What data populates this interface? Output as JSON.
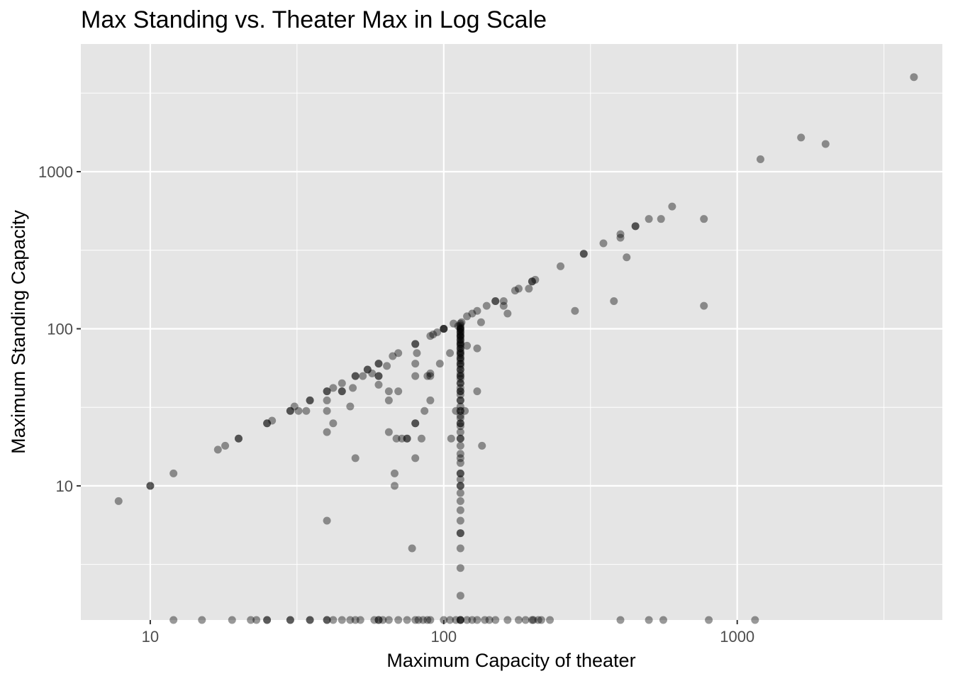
{
  "chart_data": {
    "type": "scatter",
    "title": "Max Standing vs. Theater Max in Log Scale",
    "xlabel": "Maximum Capacity of theater",
    "ylabel": "Maximum Standing Capacity",
    "xscale": "log10",
    "yscale": "log10",
    "xlim": [
      5.8,
      5000
    ],
    "ylim": [
      1.4,
      6500
    ],
    "x_ticks": [
      10,
      100,
      1000
    ],
    "x_tick_labels": [
      "10",
      "100",
      "1000"
    ],
    "y_ticks": [
      10,
      100,
      1000
    ],
    "y_tick_labels": [
      "10",
      "100",
      "1000"
    ],
    "grid": true,
    "legend": "none",
    "point_color": "#000000",
    "point_opacity": 0.4,
    "panel_color": "#e5e5e5",
    "grid_color": "#ffffff",
    "points": [
      [
        7.8,
        8
      ],
      [
        10,
        10
      ],
      [
        10,
        10
      ],
      [
        12,
        12
      ],
      [
        17,
        17
      ],
      [
        18,
        18
      ],
      [
        20,
        20
      ],
      [
        20,
        20
      ],
      [
        25,
        25
      ],
      [
        25,
        25
      ],
      [
        26,
        26
      ],
      [
        30,
        30
      ],
      [
        30,
        30
      ],
      [
        31,
        32
      ],
      [
        32,
        30
      ],
      [
        34,
        30
      ],
      [
        35,
        35
      ],
      [
        35,
        35
      ],
      [
        40,
        40
      ],
      [
        40,
        40
      ],
      [
        40,
        35
      ],
      [
        40,
        30
      ],
      [
        40,
        22
      ],
      [
        40,
        6
      ],
      [
        42,
        42
      ],
      [
        42,
        25
      ],
      [
        45,
        45
      ],
      [
        45,
        40
      ],
      [
        45,
        40
      ],
      [
        48,
        32
      ],
      [
        49,
        42
      ],
      [
        50,
        50
      ],
      [
        50,
        50
      ],
      [
        50,
        15
      ],
      [
        53,
        50
      ],
      [
        55,
        55
      ],
      [
        55,
        55
      ],
      [
        57,
        52
      ],
      [
        60,
        60
      ],
      [
        60,
        60
      ],
      [
        60,
        50
      ],
      [
        60,
        50
      ],
      [
        60,
        44
      ],
      [
        64,
        58
      ],
      [
        65,
        40
      ],
      [
        65,
        35
      ],
      [
        65,
        22
      ],
      [
        67,
        67
      ],
      [
        68,
        12
      ],
      [
        68,
        10
      ],
      [
        69,
        20
      ],
      [
        70,
        70
      ],
      [
        70,
        40
      ],
      [
        72,
        20
      ],
      [
        75,
        20
      ],
      [
        75,
        20
      ],
      [
        78,
        4
      ],
      [
        80,
        80
      ],
      [
        80,
        80
      ],
      [
        80,
        60
      ],
      [
        80,
        50
      ],
      [
        80,
        25
      ],
      [
        80,
        25
      ],
      [
        80,
        15
      ],
      [
        81,
        70
      ],
      [
        84,
        20
      ],
      [
        86,
        30
      ],
      [
        88,
        50
      ],
      [
        90,
        90
      ],
      [
        90,
        50
      ],
      [
        90,
        35
      ],
      [
        90,
        52
      ],
      [
        92,
        92
      ],
      [
        95,
        95
      ],
      [
        97,
        60
      ],
      [
        100,
        100
      ],
      [
        100,
        100
      ],
      [
        100,
        100
      ],
      [
        105,
        70
      ],
      [
        106,
        20
      ],
      [
        108,
        108
      ],
      [
        110,
        30
      ],
      [
        112,
        104
      ],
      [
        115,
        110
      ],
      [
        118,
        30
      ],
      [
        120,
        120
      ],
      [
        120,
        78
      ],
      [
        125,
        125
      ],
      [
        130,
        130
      ],
      [
        130,
        75
      ],
      [
        130,
        40
      ],
      [
        134,
        110
      ],
      [
        135,
        18
      ],
      [
        140,
        140
      ],
      [
        150,
        150
      ],
      [
        150,
        150
      ],
      [
        160,
        150
      ],
      [
        160,
        140
      ],
      [
        165,
        125
      ],
      [
        175,
        175
      ],
      [
        180,
        180
      ],
      [
        195,
        180
      ],
      [
        200,
        200
      ],
      [
        200,
        200
      ],
      [
        205,
        205
      ],
      [
        250,
        250
      ],
      [
        280,
        130
      ],
      [
        300,
        300
      ],
      [
        300,
        300
      ],
      [
        350,
        350
      ],
      [
        380,
        150
      ],
      [
        400,
        380
      ],
      [
        400,
        400
      ],
      [
        420,
        285
      ],
      [
        450,
        450
      ],
      [
        450,
        450
      ],
      [
        500,
        500
      ],
      [
        550,
        500
      ],
      [
        600,
        600
      ],
      [
        770,
        500
      ],
      [
        770,
        140
      ],
      [
        1200,
        1200
      ],
      [
        1650,
        1650
      ],
      [
        2000,
        1500
      ],
      [
        4000,
        4000
      ],
      [
        114,
        2
      ],
      [
        114,
        3
      ],
      [
        114,
        4
      ],
      [
        114,
        5
      ],
      [
        114,
        5
      ],
      [
        114,
        6
      ],
      [
        114,
        7
      ],
      [
        114,
        8
      ],
      [
        114,
        9
      ],
      [
        114,
        10
      ],
      [
        114,
        10
      ],
      [
        114,
        11
      ],
      [
        114,
        12
      ],
      [
        114,
        12
      ],
      [
        114,
        14
      ],
      [
        114,
        15
      ],
      [
        114,
        16
      ],
      [
        114,
        18
      ],
      [
        114,
        20
      ],
      [
        114,
        20
      ],
      [
        114,
        22
      ],
      [
        114,
        24
      ],
      [
        114,
        25
      ],
      [
        114,
        25
      ],
      [
        114,
        27
      ],
      [
        114,
        28
      ],
      [
        114,
        30
      ],
      [
        114,
        30
      ],
      [
        114,
        32
      ],
      [
        114,
        35
      ],
      [
        114,
        35
      ],
      [
        114,
        38
      ],
      [
        114,
        40
      ],
      [
        114,
        40
      ],
      [
        114,
        42
      ],
      [
        114,
        45
      ],
      [
        114,
        45
      ],
      [
        114,
        48
      ],
      [
        114,
        50
      ],
      [
        114,
        50
      ],
      [
        114,
        52
      ],
      [
        114,
        55
      ],
      [
        114,
        55
      ],
      [
        114,
        58
      ],
      [
        114,
        60
      ],
      [
        114,
        60
      ],
      [
        114,
        63
      ],
      [
        114,
        65
      ],
      [
        114,
        65
      ],
      [
        114,
        68
      ],
      [
        114,
        70
      ],
      [
        114,
        70
      ],
      [
        114,
        72
      ],
      [
        114,
        75
      ],
      [
        114,
        75
      ],
      [
        114,
        78
      ],
      [
        114,
        80
      ],
      [
        114,
        80
      ],
      [
        114,
        82
      ],
      [
        114,
        85
      ],
      [
        114,
        85
      ],
      [
        114,
        88
      ],
      [
        114,
        90
      ],
      [
        114,
        90
      ],
      [
        114,
        92
      ],
      [
        114,
        95
      ],
      [
        114,
        95
      ],
      [
        114,
        98
      ],
      [
        114,
        100
      ],
      [
        114,
        100
      ],
      [
        114,
        102
      ],
      [
        114,
        105
      ],
      [
        114,
        108
      ]
    ],
    "floor_points_x": [
      12,
      15,
      19,
      22,
      23,
      25,
      25,
      30,
      30,
      35,
      35,
      40,
      40,
      42,
      45,
      48,
      50,
      52,
      58,
      60,
      60,
      62,
      65,
      70,
      75,
      80,
      82,
      85,
      88,
      90,
      100,
      105,
      110,
      114,
      114,
      114,
      120,
      125,
      130,
      138,
      143,
      150,
      165,
      180,
      190,
      200,
      202,
      210,
      215,
      230,
      400,
      500,
      560,
      800,
      1150
    ]
  }
}
